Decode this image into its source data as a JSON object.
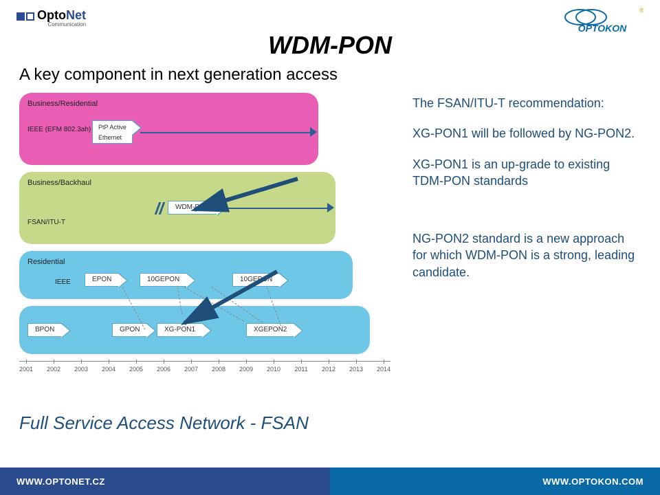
{
  "logo_left": {
    "brand": "Opto",
    "brand2": "Net",
    "sub": "Communication"
  },
  "logo_right": {
    "brand": "OPTOKON",
    "color": "#0a6aa8",
    "accent": "#d4a017"
  },
  "title": "WDM-PON",
  "subtitle": "A key component in next generation access",
  "bullets": {
    "p1": "The FSAN/ITU-T recommendation:",
    "p2": "XG-PON1 will be followed by NG-PON2.",
    "p3": "XG-PON1 is an up-grade to existing TDM-PON standards",
    "p4": "NG-PON2 standard is a new approach for which WDM-PON is a strong, leading candidate."
  },
  "footer_text": "Full Service Access Network  - FSAN",
  "bottom": {
    "left": "WWW.OPTONET.CZ",
    "right": "WWW.OPTOKON.COM"
  },
  "bands": {
    "pink": {
      "label1": "Business/Residential",
      "label2": "IEEE (EFM 802.3ah)",
      "chip1": "PtP Active\nEthernet"
    },
    "green": {
      "label1": "Business/Backhaul",
      "label2": "FSAN/ITU-T",
      "chip1": "WDM-PON"
    },
    "blue1": {
      "label1": "Residential",
      "label2": "IEEE",
      "chips": [
        "EPON",
        "10GEPON",
        "10GEPON"
      ]
    },
    "blue2": {
      "chips": [
        "BPON",
        "GPON",
        "XG-PON1",
        "XGEPON2"
      ]
    }
  },
  "timeline": {
    "years": [
      "2001",
      "2002",
      "2003",
      "2004",
      "2005",
      "2006",
      "2007",
      "2008",
      "2009",
      "2010",
      "2011",
      "2012",
      "2013",
      "2014"
    ]
  },
  "colors": {
    "pink": "#e95db4",
    "green": "#c6d98a",
    "blue": "#6fc7e8",
    "line": "#2b5f8f",
    "text_blue": "#1f4e79"
  }
}
